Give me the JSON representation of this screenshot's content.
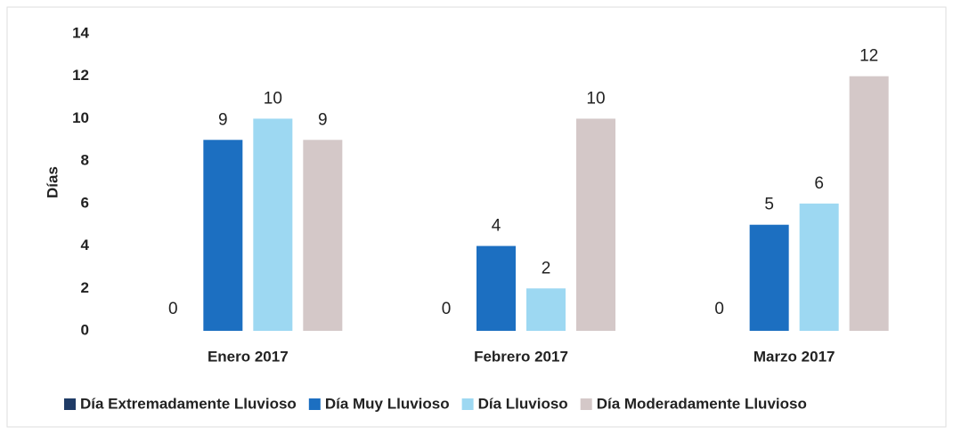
{
  "chart_data": {
    "type": "bar",
    "y_label": "Días",
    "categories": [
      "Enero 2017",
      "Febrero 2017",
      "Marzo 2017"
    ],
    "series": [
      {
        "name": "Día Extremadamente Lluvioso",
        "color": "#1f3b66",
        "values": [
          0,
          0,
          0
        ]
      },
      {
        "name": "Día Muy Lluvioso",
        "color": "#1c6fc1",
        "values": [
          9,
          4,
          5
        ]
      },
      {
        "name": "Día Lluvioso",
        "color": "#9dd8f2",
        "values": [
          10,
          2,
          6
        ]
      },
      {
        "name": "Día Moderadamente Lluvioso",
        "color": "#d4c8c8",
        "values": [
          9,
          10,
          12
        ]
      }
    ],
    "ylim": [
      0,
      14
    ],
    "yticks": [
      0,
      2,
      4,
      6,
      8,
      10,
      12,
      14
    ],
    "grid": false,
    "legend": "bottom"
  }
}
